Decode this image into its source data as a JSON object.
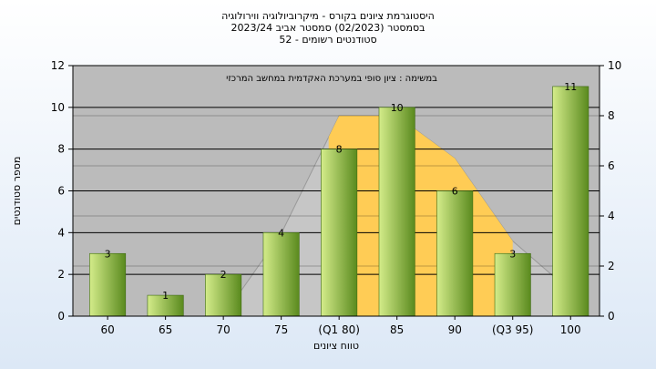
{
  "chart_data": {
    "type": "bar",
    "title_lines": [
      "היסטוגרמת ציונים בקורס - מיקרוביולוגיה ווירולוגיה",
      "בסמסטר  (02/2023)  סמסטר אביב 2023/24",
      "סטודנטים רשומים - 52"
    ],
    "annotation": "במשימה : ציון סופי במערכת האקדמית במחשב המרכזי",
    "xlabel": "טווח ציונים",
    "ylabel": "מספר סטודנטים",
    "categories": [
      "60",
      "65",
      "70",
      "75",
      "(Q1 80)",
      "85",
      "90",
      "(Q3 95)",
      "100"
    ],
    "values": [
      3,
      1,
      2,
      4,
      8,
      10,
      6,
      3,
      11
    ],
    "data_labels": [
      "3",
      "1",
      "2",
      "4",
      "8",
      "10",
      "6",
      "3",
      "11"
    ],
    "ylim": [
      0,
      12
    ],
    "yticks": [
      "0",
      "2",
      "4",
      "6",
      "8",
      "10",
      "12"
    ],
    "y2lim": [
      0,
      10
    ],
    "y2ticks": [
      "0",
      "2",
      "4",
      "6",
      "8",
      "10"
    ],
    "distribution_curve": [
      0.0,
      0.0,
      0.0,
      3.3,
      8.0,
      8.0,
      6.3,
      3.0,
      1.0
    ],
    "highlight_range": [
      "(Q1 80)",
      "(Q3 95)"
    ],
    "grid": true,
    "colors": {
      "plot_background": "#bbbbbb",
      "bar_light": "#d4ec8a",
      "bar_dark": "#5a8a1e",
      "curve_fill": "#c6c6c6",
      "highlight_fill": "#ffcc55",
      "grid": "#000000"
    }
  }
}
